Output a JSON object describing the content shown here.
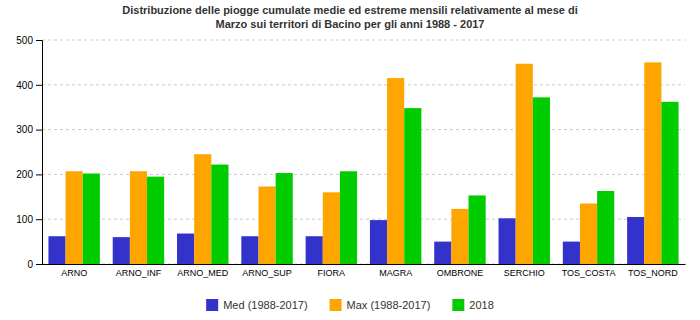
{
  "chart_data": {
    "type": "bar",
    "title": "Distribuzione delle piogge cumulate medie ed estreme mensili relativamente al mese di\nMarzo sui territori di Bacino per gli anni 1988 - 2017",
    "categories": [
      "ARNO",
      "ARNO_INF",
      "ARNO_MED",
      "ARNO_SUP",
      "FIORA",
      "MAGRA",
      "OMBRONE",
      "SERCHIO",
      "TOS_COSTA",
      "TOS_NORD"
    ],
    "series": [
      {
        "name": "Med (1988-2017)",
        "color": "#3333CC",
        "values": [
          62,
          60,
          68,
          62,
          62,
          98,
          50,
          102,
          50,
          105
        ]
      },
      {
        "name": "Max (1988-2017)",
        "color": "#FFA500",
        "values": [
          207,
          207,
          245,
          173,
          160,
          415,
          123,
          447,
          135,
          450
        ]
      },
      {
        "name": "2018",
        "color": "#00CC00",
        "values": [
          202,
          195,
          222,
          203,
          207,
          348,
          153,
          372,
          163,
          362
        ]
      }
    ],
    "ylim": [
      0,
      500
    ],
    "yticks": [
      0,
      100,
      200,
      300,
      400,
      500
    ],
    "grid": true,
    "legend": "bottom"
  }
}
